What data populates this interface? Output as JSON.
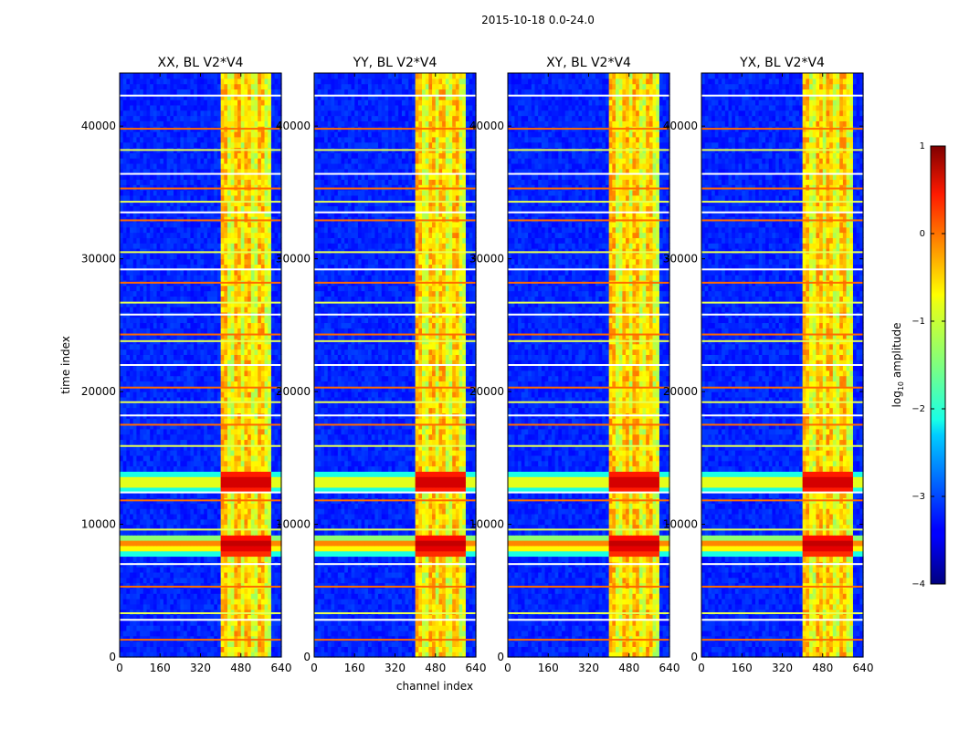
{
  "figure": {
    "suptitle": "2015-10-18 0.0-24.0",
    "xlabel": "channel index",
    "ylabel": "time index"
  },
  "chart_data": {
    "type": "heatmap",
    "panels": [
      {
        "title": "XX, BL V2*V4"
      },
      {
        "title": "YY, BL V2*V4"
      },
      {
        "title": "XY, BL V2*V4"
      },
      {
        "title": "YX, BL V2*V4"
      }
    ],
    "x_range": [
      0,
      640
    ],
    "y_range": [
      0,
      44000
    ],
    "x_ticks": [
      0,
      160,
      320,
      480,
      640
    ],
    "y_ticks": [
      0,
      10000,
      20000,
      30000,
      40000
    ],
    "bright_channel_range": [
      400,
      600
    ],
    "strong_time_bands": [
      {
        "y": 8500,
        "level": 0.8
      },
      {
        "y": 13200,
        "level": 0.7
      }
    ],
    "rfi_lines_time": [
      1300,
      2800,
      3300,
      5300,
      7000,
      9600,
      11800,
      12400,
      15900,
      17500,
      18200,
      19200,
      20300,
      22000,
      23800,
      24300,
      25800,
      26700,
      28200,
      29200,
      30500,
      32900,
      33500,
      34300,
      35300,
      36400,
      38200,
      39800,
      42300
    ],
    "colorbar": {
      "label": "log10 amplitude",
      "ticks": [
        1,
        0,
        -1,
        -2,
        -3,
        -4
      ],
      "tick_labels": [
        "1",
        "0",
        "−1",
        "−2",
        "−3",
        "−4"
      ],
      "range": [
        -4,
        1
      ],
      "colormap": "jet"
    }
  }
}
